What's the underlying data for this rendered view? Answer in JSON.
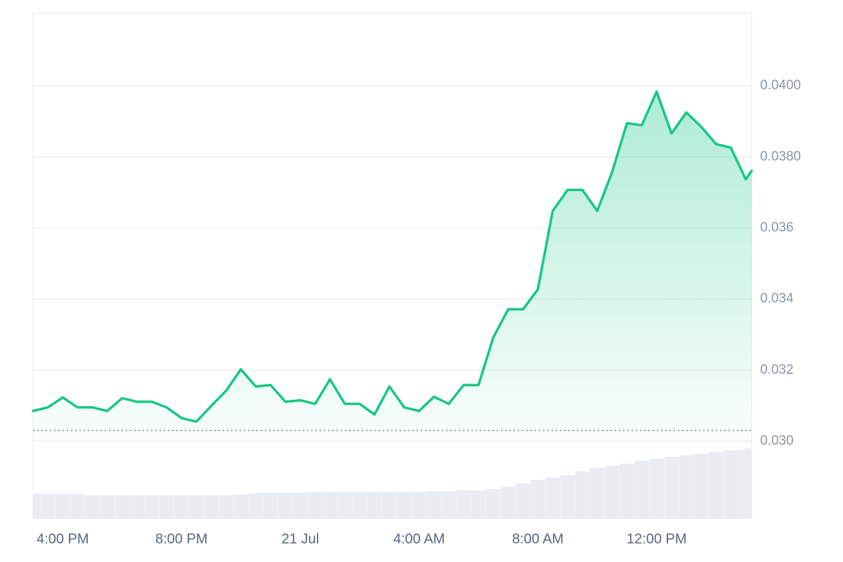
{
  "chart_data": {
    "type": "line",
    "x": [
      15,
      15.5,
      16,
      16.5,
      17,
      17.5,
      18,
      18.5,
      19,
      19.5,
      20,
      20.5,
      21,
      21.5,
      22,
      22.5,
      23,
      23.5,
      24,
      24.5,
      25,
      25.5,
      26,
      26.5,
      27,
      27.5,
      28,
      28.5,
      29,
      29.5,
      30,
      30.5,
      31,
      31.5,
      32,
      32.5,
      33,
      33.5,
      34,
      34.5,
      35,
      35.5,
      36,
      36.5,
      37,
      37.5,
      38,
      38.5,
      39,
      39.2
    ],
    "values": [
      0.03085,
      0.03095,
      0.03123,
      0.03095,
      0.03095,
      0.03085,
      0.03121,
      0.03111,
      0.03111,
      0.03095,
      0.03065,
      0.03055,
      0.03099,
      0.03142,
      0.03202,
      0.03154,
      0.03158,
      0.03111,
      0.03115,
      0.03105,
      0.03174,
      0.03105,
      0.03105,
      0.03075,
      0.03154,
      0.03095,
      0.03085,
      0.03125,
      0.03105,
      0.03158,
      0.03158,
      0.03292,
      0.03371,
      0.03371,
      0.03427,
      0.03648,
      0.03707,
      0.03707,
      0.03648,
      0.03757,
      0.03895,
      0.03889,
      0.03984,
      0.03866,
      0.03925,
      0.03885,
      0.03836,
      0.03826,
      0.03737,
      0.03761
    ],
    "color": "#16c784",
    "volume": {
      "values": [
        35,
        35,
        35,
        35,
        33,
        33,
        33,
        33,
        33,
        33,
        33,
        33,
        33,
        33,
        34,
        36,
        37,
        37,
        37,
        38,
        38,
        38,
        38,
        38,
        38,
        38,
        38,
        39,
        39,
        40,
        40,
        42,
        45,
        50,
        55,
        58,
        62,
        67,
        72,
        75,
        78,
        82,
        85,
        88,
        90,
        92,
        95,
        97,
        98,
        100
      ],
      "lim": [
        0,
        110
      ],
      "color": "#e9edf2"
    },
    "xlim": [
      15,
      39.2
    ],
    "xticks": [
      {
        "value": 16,
        "label": "4:00 PM"
      },
      {
        "value": 20,
        "label": "8:00 PM"
      },
      {
        "value": 24,
        "label": "21 Jul"
      },
      {
        "value": 28,
        "label": "4:00 AM"
      },
      {
        "value": 32,
        "label": "8:00 AM"
      },
      {
        "value": 36,
        "label": "12:00 PM"
      }
    ],
    "ylim": [
      0.03,
      0.04206
    ],
    "yticks": [
      {
        "value": 0.03,
        "label": "0.030"
      },
      0.032,
      0.034,
      0.036,
      {
        "value": 0.038,
        "label": "0.0380"
      },
      {
        "value": 0.04,
        "label": "0.0400"
      }
    ],
    "reference_line": 0.0303,
    "grid": true,
    "y_axis_side": "right"
  }
}
